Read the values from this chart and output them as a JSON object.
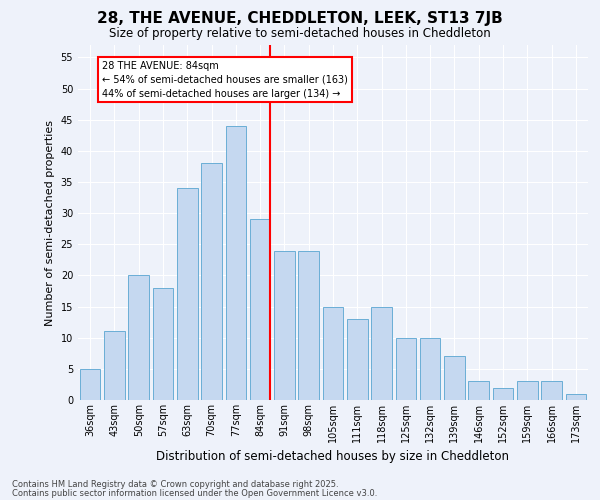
{
  "title": "28, THE AVENUE, CHEDDLETON, LEEK, ST13 7JB",
  "subtitle": "Size of property relative to semi-detached houses in Cheddleton",
  "xlabel": "Distribution of semi-detached houses by size in Cheddleton",
  "ylabel": "Number of semi-detached properties",
  "categories": [
    "36sqm",
    "43sqm",
    "50sqm",
    "57sqm",
    "63sqm",
    "70sqm",
    "77sqm",
    "84sqm",
    "91sqm",
    "98sqm",
    "105sqm",
    "111sqm",
    "118sqm",
    "125sqm",
    "132sqm",
    "139sqm",
    "146sqm",
    "152sqm",
    "159sqm",
    "166sqm",
    "173sqm"
  ],
  "values": [
    5,
    11,
    20,
    18,
    34,
    38,
    44,
    29,
    24,
    24,
    15,
    13,
    15,
    10,
    10,
    7,
    3,
    2,
    3,
    3,
    1
  ],
  "bar_color": "#c5d8f0",
  "bar_edge_color": "#6aaed6",
  "vline_color": "red",
  "annotation_title": "28 THE AVENUE: 84sqm",
  "annotation_line1": "← 54% of semi-detached houses are smaller (163)",
  "annotation_line2": "44% of semi-detached houses are larger (134) →",
  "annotation_box_color": "white",
  "annotation_box_edge_color": "red",
  "ylim": [
    0,
    57
  ],
  "yticks": [
    0,
    5,
    10,
    15,
    20,
    25,
    30,
    35,
    40,
    45,
    50,
    55
  ],
  "footer1": "Contains HM Land Registry data © Crown copyright and database right 2025.",
  "footer2": "Contains public sector information licensed under the Open Government Licence v3.0.",
  "bg_color": "#eef2fa",
  "grid_color": "white",
  "title_fontsize": 11,
  "subtitle_fontsize": 8.5,
  "ylabel_fontsize": 8,
  "xlabel_fontsize": 8.5,
  "tick_fontsize": 7,
  "annotation_fontsize": 7,
  "footer_fontsize": 6
}
